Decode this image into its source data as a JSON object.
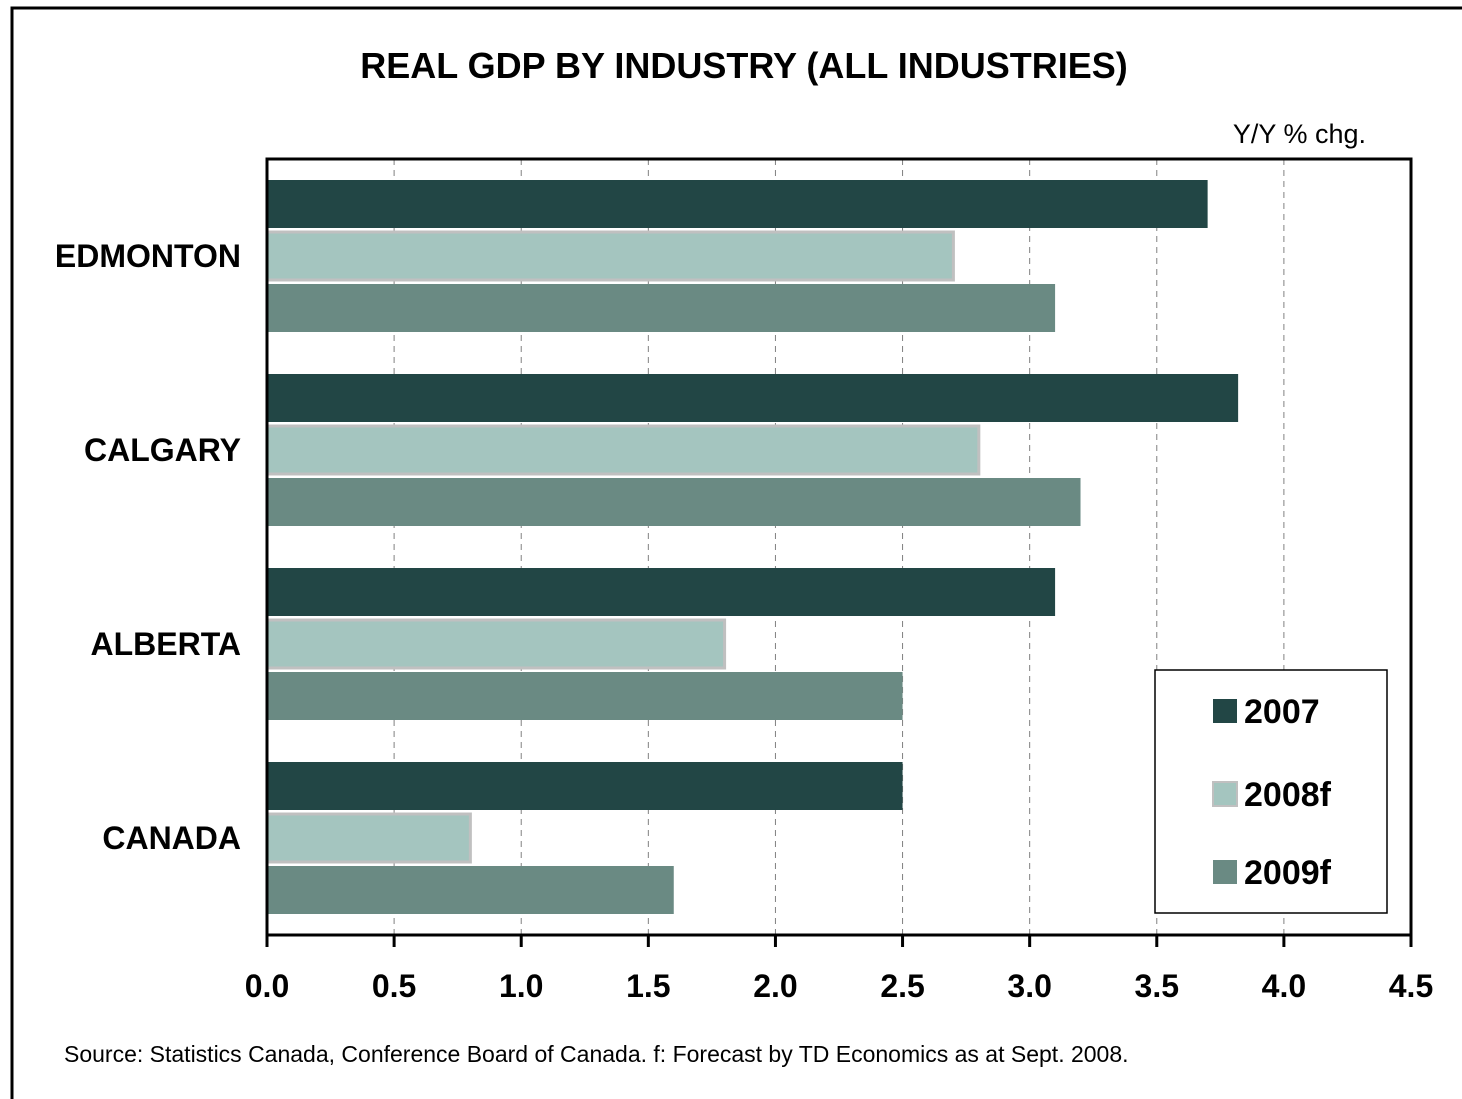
{
  "chart_data": {
    "type": "bar",
    "orientation": "horizontal",
    "title": "REAL GDP BY INDUSTRY (ALL INDUSTRIES)",
    "unit_label": "Y/Y % chg.",
    "categories": [
      "EDMONTON",
      "CALGARY",
      "ALBERTA",
      "CANADA"
    ],
    "series": [
      {
        "name": "2007",
        "color": "#224645",
        "values": [
          3.7,
          3.82,
          3.1,
          2.5
        ]
      },
      {
        "name": "2008f",
        "color": "#a4c5bf",
        "values": [
          2.7,
          2.8,
          1.8,
          0.8
        ]
      },
      {
        "name": "2009f",
        "color": "#6a8a83",
        "values": [
          3.1,
          3.2,
          2.5,
          1.6
        ]
      }
    ],
    "xlim": [
      0,
      4.5
    ],
    "xticks": [
      "0.0",
      "0.5",
      "1.0",
      "1.5",
      "2.0",
      "2.5",
      "3.0",
      "3.5",
      "4.0",
      "4.5"
    ],
    "grid": "vertical dashed",
    "legend_position": "bottom-right",
    "source": "Source: Statistics Canada, Conference Board of Canada. f: Forecast by TD Economics as at Sept. 2008."
  }
}
